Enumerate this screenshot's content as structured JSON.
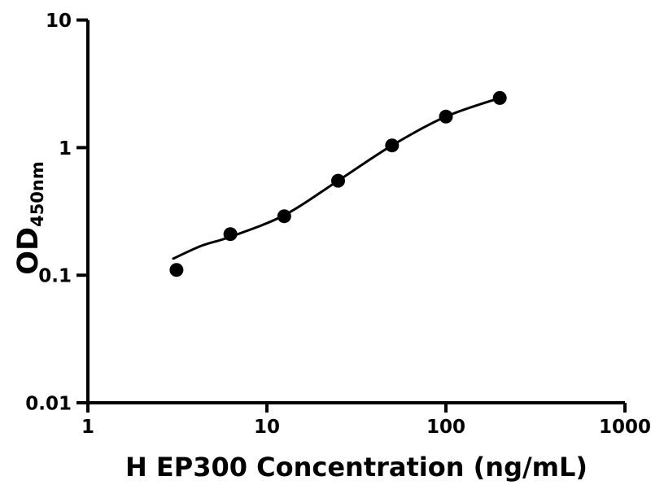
{
  "figure": {
    "background": "#ffffff",
    "ink": "#000000"
  },
  "chart_data": {
    "type": "scatter",
    "title": "",
    "xlabel": "H EP300 Concentration (ng/mL)",
    "ylabel_main": "OD",
    "ylabel_sub": "450nm",
    "x_scale": "log",
    "y_scale": "log",
    "xlim": [
      1,
      1000
    ],
    "ylim": [
      0.01,
      10
    ],
    "grid": false,
    "legend": "none",
    "x_ticks": [
      {
        "value": 1,
        "label": "1"
      },
      {
        "value": 10,
        "label": "10"
      },
      {
        "value": 100,
        "label": "100"
      },
      {
        "value": 1000,
        "label": "1000"
      }
    ],
    "y_ticks": [
      {
        "value": 0.01,
        "label": "0.01"
      },
      {
        "value": 0.1,
        "label": "0.1"
      },
      {
        "value": 1,
        "label": "1"
      },
      {
        "value": 10,
        "label": "10"
      }
    ],
    "series": [
      {
        "name": "fit-curve",
        "kind": "line",
        "color": "#000000",
        "line_width": 3,
        "x": [
          3.0,
          4.3,
          6.25,
          12.5,
          25,
          50,
          100,
          200
        ],
        "y": [
          0.135,
          0.17,
          0.2,
          0.295,
          0.55,
          1.04,
          1.75,
          2.45
        ]
      },
      {
        "name": "standard-points",
        "kind": "scatter",
        "marker": "filled-circle",
        "color": "#000000",
        "marker_radius": 8.5,
        "x": [
          3.125,
          6.25,
          12.5,
          25,
          50,
          100,
          200
        ],
        "y": [
          0.11,
          0.21,
          0.29,
          0.55,
          1.04,
          1.75,
          2.45
        ]
      }
    ]
  }
}
